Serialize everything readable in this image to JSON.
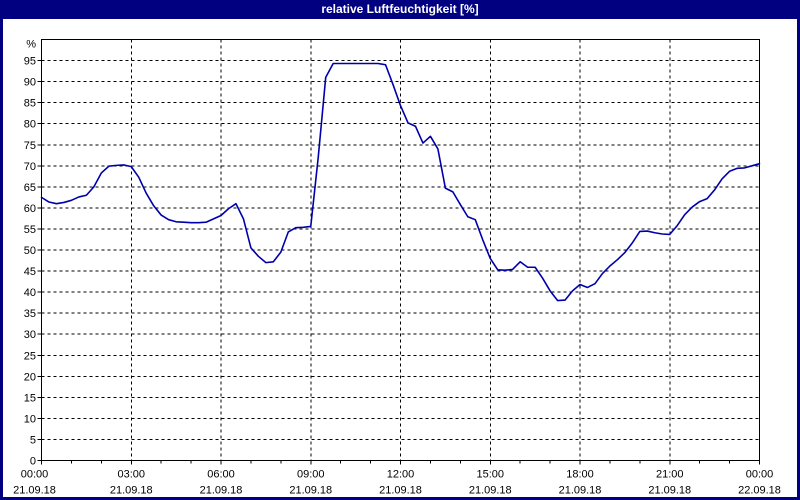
{
  "window": {
    "title": "relative Luftfeuchtigkeit [%]",
    "colors": {
      "title_bar_bg": "#000080",
      "title_text": "#ffffff",
      "window_border": "#000080",
      "plot_background": "#ffffff",
      "grid": "#000000",
      "axis": "#000000",
      "line": "#0000aa",
      "label_text": "#000000"
    }
  },
  "chart_data": {
    "type": "line",
    "title": "relative Luftfeuchtigkeit [%]",
    "ylabel": "%",
    "xlabel": "",
    "ylim": [
      0,
      100
    ],
    "grid": "dashed horizontal and vertical",
    "legend": "none",
    "y_ticks": [
      0,
      5,
      10,
      15,
      20,
      25,
      30,
      35,
      40,
      45,
      50,
      55,
      60,
      65,
      70,
      75,
      80,
      85,
      90,
      95
    ],
    "x_axis": {
      "tick_hours": [
        0,
        3,
        6,
        9,
        12,
        15,
        18,
        21,
        24
      ],
      "tick_times": [
        "00:00",
        "03:00",
        "06:00",
        "09:00",
        "12:00",
        "15:00",
        "18:00",
        "21:00",
        "00:00"
      ],
      "tick_dates": [
        "21.09.18",
        "21.09.18",
        "21.09.18",
        "21.09.18",
        "21.09.18",
        "21.09.18",
        "21.09.18",
        "21.09.18",
        "22.09.18"
      ]
    },
    "series": [
      {
        "name": "relative Luftfeuchtigkeit",
        "unit": "%",
        "x_start_hour": 0,
        "x_step_minutes": 15,
        "values": [
          62.5,
          61.4,
          61.0,
          61.3,
          61.8,
          62.6,
          63.0,
          65.0,
          68.3,
          69.9,
          70.1,
          70.2,
          69.8,
          67.3,
          63.5,
          60.5,
          58.3,
          57.2,
          56.7,
          56.6,
          56.5,
          56.5,
          56.6,
          57.4,
          58.2,
          59.8,
          61.0,
          57.4,
          50.5,
          48.5,
          47.0,
          47.2,
          49.5,
          54.3,
          55.3,
          55.4,
          55.6,
          72.0,
          91.0,
          94.3,
          94.3,
          94.3,
          94.3,
          94.3,
          94.3,
          94.3,
          94.0,
          89.3,
          84.3,
          80.2,
          79.4,
          75.4,
          77.0,
          74.0,
          64.7,
          63.8,
          60.8,
          57.9,
          57.2,
          52.4,
          48.0,
          45.3,
          45.2,
          45.4,
          47.2,
          45.9,
          45.9,
          43.3,
          40.3,
          38.0,
          38.1,
          40.3,
          41.8,
          41.1,
          42.0,
          44.4,
          46.2,
          47.7,
          49.4,
          51.7,
          54.4,
          54.5,
          54.1,
          53.8,
          53.7,
          55.8,
          58.4,
          60.2,
          61.5,
          62.2,
          64.3,
          66.9,
          68.7,
          69.4,
          69.5,
          70.0,
          70.5
        ]
      }
    ]
  }
}
